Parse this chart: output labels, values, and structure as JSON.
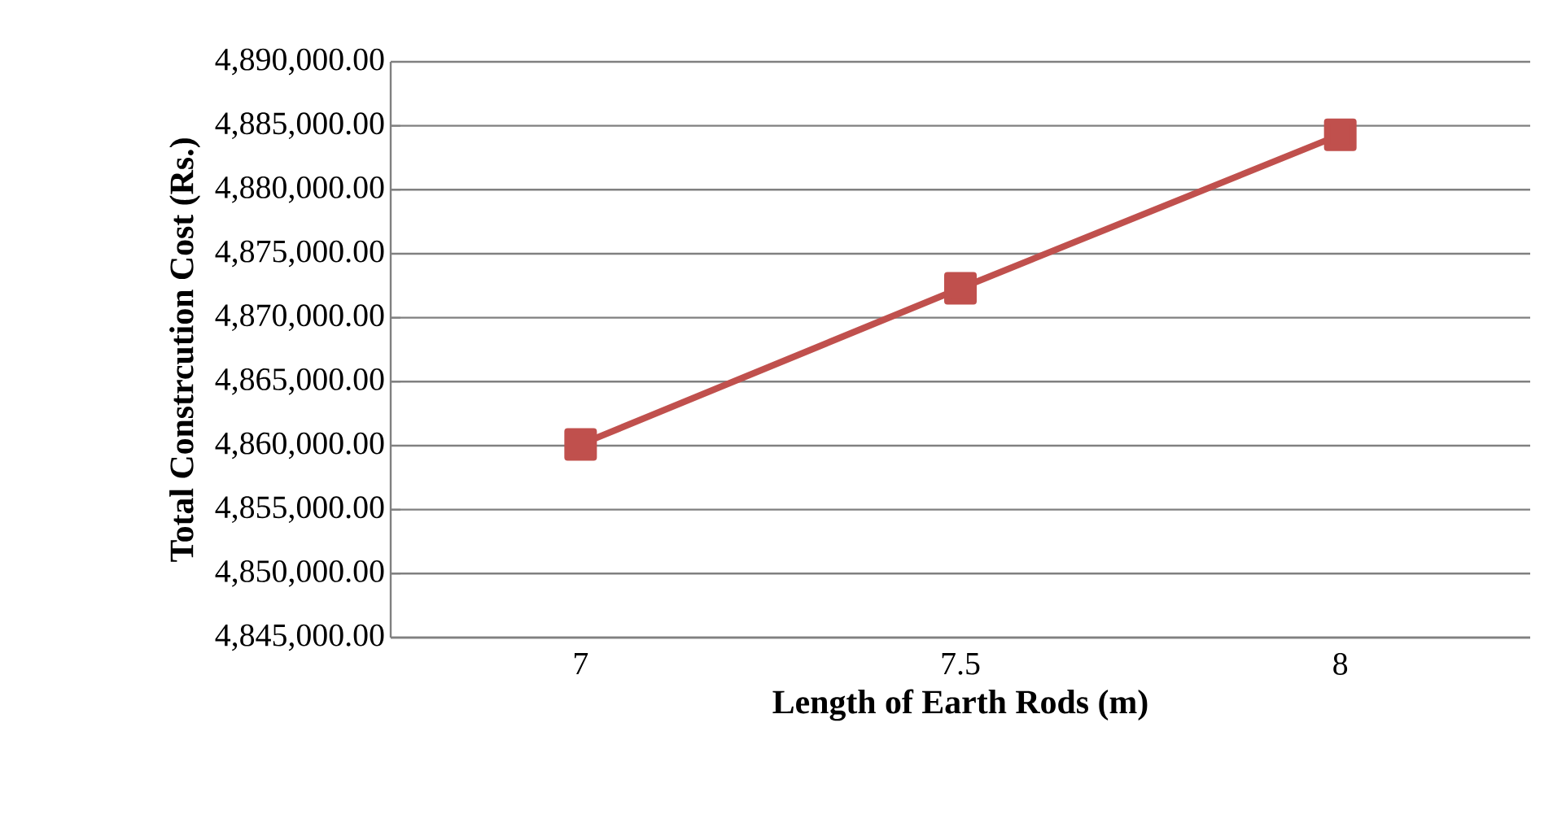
{
  "chart_data": {
    "type": "line",
    "xlabel": "Length of Earth Rods (m)",
    "ylabel": "Total Constrcution Cost (Rs.)",
    "categories": [
      "7",
      "7.5",
      "8"
    ],
    "series": [
      {
        "color": "#c0504d",
        "values": [
          4860100,
          4872300,
          4884300
        ]
      }
    ],
    "ylim": [
      4845000,
      4890000
    ],
    "yticks": [
      {
        "value": 4845000,
        "label": "4,845,000.00"
      },
      {
        "value": 4850000,
        "label": "4,850,000.00"
      },
      {
        "value": 4855000,
        "label": "4,855,000.00"
      },
      {
        "value": 4860000,
        "label": "4,860,000.00"
      },
      {
        "value": 4865000,
        "label": "4,865,000.00"
      },
      {
        "value": 4870000,
        "label": "4,870,000.00"
      },
      {
        "value": 4875000,
        "label": "4,875,000.00"
      },
      {
        "value": 4880000,
        "label": "4,880,000.00"
      },
      {
        "value": 4885000,
        "label": "4,885,000.00"
      },
      {
        "value": 4890000,
        "label": "4,890,000.00"
      }
    ],
    "grid": "y",
    "marker": "square",
    "line_style": "solid"
  }
}
